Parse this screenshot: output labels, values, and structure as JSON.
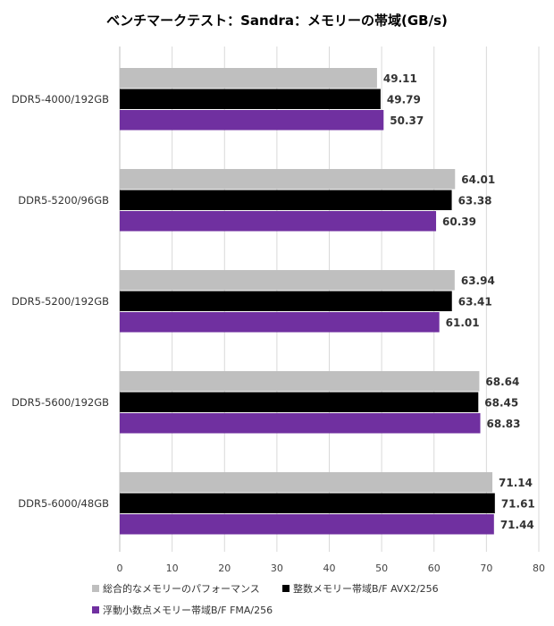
{
  "chart_data": {
    "type": "bar",
    "orientation": "horizontal",
    "title": "ベンチマークテスト：Sandra：メモリーの帯域(GB/s)",
    "categories": [
      "DDR5-4000/192GB",
      "DDR5-5200/96GB",
      "DDR5-5200/192GB",
      "DDR5-5600/192GB",
      "DDR5-6000/48GB"
    ],
    "series": [
      {
        "name": "総合的なメモリーのパフォーマンス",
        "color": "#bfbfbf",
        "values": [
          49.11,
          64.01,
          63.94,
          68.64,
          71.14
        ]
      },
      {
        "name": "整数メモリー帯域B/F AVX2/256",
        "color": "#000000",
        "values": [
          49.79,
          63.38,
          63.41,
          68.45,
          71.61
        ]
      },
      {
        "name": "浮動小数点メモリー帯域B/F FMA/256",
        "color": "#7030a0",
        "values": [
          50.37,
          60.39,
          61.01,
          68.83,
          71.44
        ]
      }
    ],
    "xlim": [
      0,
      80
    ],
    "xticks": [
      0,
      10,
      20,
      30,
      40,
      50,
      60,
      70,
      80
    ],
    "grid": "vertical",
    "legend_position": "bottom"
  }
}
